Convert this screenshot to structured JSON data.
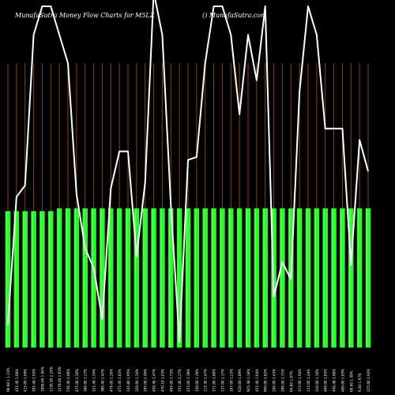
{
  "header": {
    "left_text": "MunafaSutra  Money Flow  Charts for M5LZ",
    "right_text": "() MunafaSutra.com"
  },
  "colors": {
    "background": "#000000",
    "bar": "#22ff22",
    "bar_highlight": "#aaffaa",
    "grid": "#8b4500",
    "line": "#ffffff",
    "label": "#ffffff"
  },
  "chart_data": {
    "type": "bar",
    "title": "",
    "xlabel": "",
    "ylabel": "",
    "ylim": [
      0,
      1
    ],
    "grid": true,
    "legend": "none",
    "categories": [
      "90.98 1 1.23%",
      "455.40 1.68%",
      "415.09 1.69%",
      "395.48 1.03%",
      "1008.69 1.96%",
      "1239.50 2.24%",
      "1278.40 1.03%",
      "530.40 2.00%",
      "475.00 2.20%",
      "380.00 1.27%",
      "325.48 1.54%",
      "380.40 2.42%",
      "478.00 1.26%",
      "475.46 1.83%",
      "335.80 1.95%",
      "350.00 1.34%",
      "295.00 2.49%",
      "450.40 1.47%",
      "470.18 1.03%",
      "465.00 1.73%",
      "155.40 2.27%",
      "255.00 1.39%",
      "150.00 1.29%",
      "115.30 1.47%",
      "171.00 1.89%",
      "137.00 1.17%",
      "107.09 1.23%",
      "620.00 1.89%",
      "925.48 1.18%",
      "455.40 1.64%",
      "960.00 1.82%",
      "290.00 1.43%",
      "200.00 1.71%",
      "94.00 1.67%",
      "372.00 1.94%",
      "115.00 1.44%",
      "310.00 1.20%",
      "400.00 1.83%",
      "450.48 1.68%",
      "460.00 1.83%",
      "60.00 1.39%",
      "6.40 1.97%",
      "225.00 1.93%"
    ],
    "values": [
      0.48,
      0.48,
      0.48,
      0.48,
      0.48,
      0.48,
      0.49,
      0.49,
      0.49,
      0.49,
      0.49,
      0.49,
      0.49,
      0.49,
      0.49,
      0.49,
      0.49,
      0.49,
      0.49,
      0.49,
      0.49,
      0.49,
      0.49,
      0.49,
      0.49,
      0.49,
      0.49,
      0.49,
      0.49,
      0.49,
      0.49,
      0.49,
      0.49,
      0.49,
      0.49,
      0.49,
      0.49,
      0.49,
      0.49,
      0.49,
      0.49,
      0.49,
      0.49
    ],
    "line_series": {
      "name": "",
      "values": [
        0.08,
        0.53,
        0.57,
        1.1,
        1.2,
        1.2,
        1.1,
        1.0,
        0.54,
        0.35,
        0.28,
        0.1,
        0.56,
        0.69,
        0.69,
        0.32,
        0.58,
        1.25,
        1.1,
        0.5,
        0.02,
        0.66,
        0.67,
        1.0,
        1.2,
        1.2,
        1.1,
        0.82,
        1.1,
        0.94,
        1.2,
        0.18,
        0.3,
        0.24,
        0.9,
        1.2,
        1.1,
        0.77,
        0.77,
        0.77,
        0.29,
        0.73,
        0.62
      ]
    }
  }
}
